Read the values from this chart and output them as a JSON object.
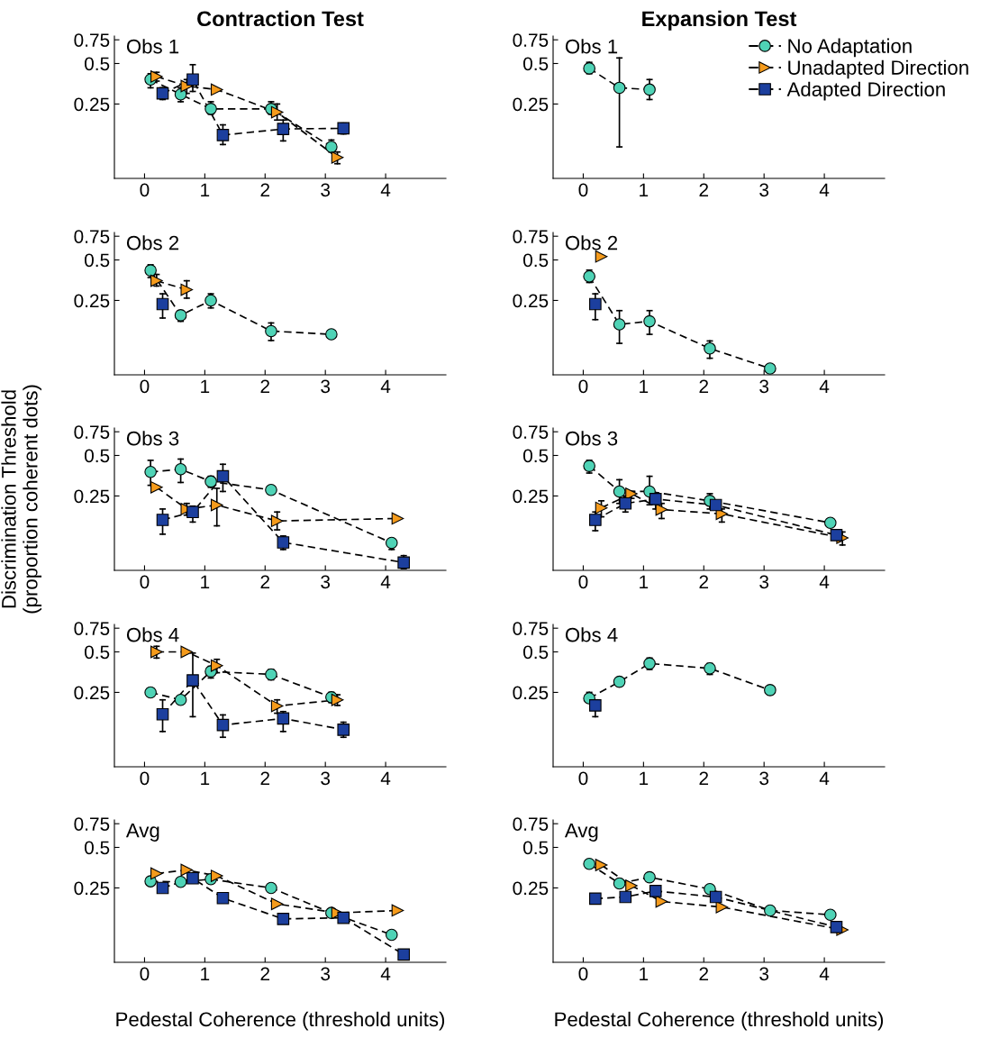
{
  "chart_data": [
    {
      "type": "line",
      "title": "Contraction Test",
      "annotations": [
        "Obs 1"
      ],
      "xlim": [
        -0.5,
        5
      ],
      "ylim": [
        0.07,
        0.8
      ],
      "xticks": [
        0,
        1,
        2,
        3,
        4
      ],
      "yticks": [
        0.25,
        0.5,
        0.75
      ],
      "log": true,
      "line_style": "dashed",
      "grid": false,
      "legend": "right",
      "series": [
        {
          "name": "No Adaptation",
          "color": "#4fd3b6",
          "marker": "circle",
          "x": [
            0.1,
            0.6,
            1.1,
            2.1,
            3.1
          ],
          "values": [
            0.38,
            0.295,
            0.23,
            0.23,
            0.12
          ],
          "errors": [
            [
              0.33,
              0.42
            ],
            [
              0.26,
              0.33
            ],
            [
              0.21,
              0.26
            ],
            [
              0.21,
              0.26
            ],
            [
              0.11,
              0.135
            ]
          ]
        },
        {
          "name": "Unadapted Direction",
          "color": "#f59b1c",
          "marker": "triangle",
          "x": [
            0.2,
            0.7,
            1.2,
            2.2,
            3.2
          ],
          "values": [
            0.4,
            0.34,
            0.32,
            0.217,
            0.1
          ],
          "errors": [
            [
              0.37,
              0.43
            ],
            [
              0.3,
              0.38
            ],
            null,
            [
              0.19,
              0.25
            ],
            [
              0.09,
              0.11
            ]
          ]
        },
        {
          "name": "Adapted Direction",
          "color": "#1c3f9e",
          "marker": "square",
          "x": [
            0.3,
            0.8,
            1.3,
            2.3,
            3.3
          ],
          "values": [
            0.3,
            0.38,
            0.147,
            0.163,
            0.165
          ],
          "errors": [
            [
              0.27,
              0.33
            ],
            [
              0.31,
              0.49
            ],
            [
              0.125,
              0.175
            ],
            [
              0.133,
              0.19
            ],
            [
              0.15,
              0.18
            ]
          ]
        }
      ]
    },
    {
      "type": "line",
      "title": "Expansion Test",
      "annotations": [
        "Obs 1"
      ],
      "xlim": [
        -0.5,
        5
      ],
      "ylim": [
        0.07,
        0.8
      ],
      "xticks": [
        0,
        1,
        2,
        3,
        4
      ],
      "yticks": [
        0.25,
        0.5,
        0.75
      ],
      "log": true,
      "line_style": "dashed",
      "grid": false,
      "series": [
        {
          "color": "#4fd3b6",
          "marker": "circle",
          "x": [
            0.1,
            0.6,
            1.1
          ],
          "values": [
            0.46,
            0.33,
            0.32
          ],
          "errors": [
            [
              0.42,
              0.51
            ],
            [
              0.12,
              0.55
            ],
            [
              0.27,
              0.38
            ]
          ]
        }
      ]
    },
    {
      "type": "line",
      "annotations": [
        "Obs 2"
      ],
      "xlim": [
        -0.5,
        5
      ],
      "ylim": [
        0.07,
        0.8
      ],
      "xticks": [
        0,
        1,
        2,
        3,
        4
      ],
      "yticks": [
        0.25,
        0.5,
        0.75
      ],
      "log": true,
      "line_style": "dashed",
      "grid": false,
      "series": [
        {
          "color": "#4fd3b6",
          "marker": "circle",
          "x": [
            0.1,
            0.6,
            1.1,
            2.1,
            3.1
          ],
          "values": [
            0.418,
            0.194,
            0.25,
            0.148,
            0.14
          ],
          "errors": [
            [
              0.37,
              0.46
            ],
            [
              0.175,
              0.21
            ],
            [
              0.22,
              0.28
            ],
            [
              0.126,
              0.17
            ],
            null
          ]
        },
        {
          "color": "#f59b1c",
          "marker": "triangle",
          "x": [
            0.2,
            0.7
          ],
          "values": [
            0.35,
            0.3
          ],
          "errors": [
            [
              0.32,
              0.39
            ],
            [
              0.26,
              0.35
            ]
          ]
        },
        {
          "color": "#1c3f9e",
          "marker": "square",
          "x": [
            0.3
          ],
          "values": [
            0.235
          ],
          "errors": [
            [
              0.185,
              0.28
            ]
          ]
        }
      ]
    },
    {
      "type": "line",
      "annotations": [
        "Obs 2"
      ],
      "xlim": [
        -0.5,
        5
      ],
      "ylim": [
        0.07,
        0.8
      ],
      "xticks": [
        0,
        1,
        2,
        3,
        4
      ],
      "yticks": [
        0.25,
        0.5,
        0.75
      ],
      "log": true,
      "line_style": "dashed",
      "grid": false,
      "series": [
        {
          "color": "#4fd3b6",
          "marker": "circle",
          "x": [
            0.1,
            0.6,
            1.1,
            2.1,
            3.1
          ],
          "values": [
            0.377,
            0.166,
            0.175,
            0.11,
            0.078
          ],
          "errors": [
            [
              0.34,
              0.42
            ],
            [
              0.12,
              0.21
            ],
            [
              0.14,
              0.21
            ],
            [
              0.093,
              0.125
            ],
            null
          ]
        },
        {
          "color": "#f59b1c",
          "marker": "triangle",
          "x": [
            0.3
          ],
          "values": [
            0.53
          ],
          "errors": [
            null
          ]
        },
        {
          "color": "#1c3f9e",
          "marker": "square",
          "x": [
            0.2
          ],
          "values": [
            0.235
          ],
          "errors": [
            [
              0.18,
              0.28
            ]
          ]
        }
      ]
    },
    {
      "type": "line",
      "annotations": [
        "Obs 3"
      ],
      "ylabel": "Discrimination Threshold\n(proportion coherent dots)",
      "xlim": [
        -0.5,
        5
      ],
      "ylim": [
        0.07,
        0.8
      ],
      "xticks": [
        0,
        1,
        2,
        3,
        4
      ],
      "yticks": [
        0.25,
        0.5,
        0.75
      ],
      "log": true,
      "line_style": "dashed",
      "grid": false,
      "series": [
        {
          "color": "#4fd3b6",
          "marker": "circle",
          "x": [
            0.1,
            0.6,
            1.1,
            2.1,
            4.1
          ],
          "values": [
            0.377,
            0.395,
            0.32,
            0.277,
            0.112
          ],
          "errors": [
            [
              0.3,
              0.46
            ],
            [
              0.315,
              0.47
            ],
            [
              0.29,
              0.35
            ],
            [
              0.26,
              0.29
            ],
            [
              0.1,
              0.12
            ]
          ]
        },
        {
          "color": "#f59b1c",
          "marker": "triangle",
          "x": [
            0.2,
            0.7,
            1.2,
            2.2,
            4.2
          ],
          "values": [
            0.29,
            0.2,
            0.214,
            0.163,
            0.17
          ],
          "errors": [
            null,
            [
              0.18,
              0.22
            ],
            [
              0.15,
              0.285
            ],
            [
              0.14,
              0.19
            ],
            null
          ]
        },
        {
          "color": "#1c3f9e",
          "marker": "square",
          "x": [
            0.3,
            0.8,
            1.3,
            2.3,
            4.3
          ],
          "values": [
            0.166,
            0.19,
            0.35,
            0.113,
            0.08
          ],
          "errors": [
            [
              0.13,
              0.2
            ],
            [
              0.16,
              0.21
            ],
            [
              0.27,
              0.43
            ],
            [
              0.1,
              0.126
            ],
            [
              0.072,
              0.09
            ]
          ]
        }
      ]
    },
    {
      "type": "line",
      "annotations": [
        "Obs 3"
      ],
      "xlim": [
        -0.5,
        5
      ],
      "ylim": [
        0.07,
        0.8
      ],
      "xticks": [
        0,
        1,
        2,
        3,
        4
      ],
      "yticks": [
        0.25,
        0.5,
        0.75
      ],
      "log": true,
      "line_style": "dashed",
      "grid": false,
      "series": [
        {
          "color": "#4fd3b6",
          "marker": "circle",
          "x": [
            0.1,
            0.6,
            1.1,
            2.1,
            4.1
          ],
          "values": [
            0.418,
            0.27,
            0.27,
            0.23,
            0.158
          ],
          "errors": [
            [
              0.37,
              0.46
            ],
            [
              0.22,
              0.33
            ],
            [
              0.215,
              0.35
            ],
            [
              0.2,
              0.26
            ],
            null
          ]
        },
        {
          "color": "#f59b1c",
          "marker": "triangle",
          "x": [
            0.3,
            0.8,
            1.3,
            2.3,
            4.3
          ],
          "values": [
            0.204,
            0.26,
            0.198,
            0.184,
            0.122
          ],
          "errors": [
            [
              0.175,
              0.23
            ],
            [
              0.24,
              0.27
            ],
            [
              0.17,
              0.22
            ],
            [
              0.16,
              0.2
            ],
            [
              0.108,
              0.135
            ]
          ]
        },
        {
          "color": "#1c3f9e",
          "marker": "square",
          "x": [
            0.2,
            0.7,
            1.2,
            2.2,
            4.2
          ],
          "values": [
            0.166,
            0.22,
            0.237,
            0.214,
            0.128
          ],
          "errors": [
            [
              0.138,
              0.19
            ],
            [
              0.19,
              0.25
            ],
            [
              0.2,
              0.26
            ],
            [
              0.2,
              0.23
            ],
            [
              0.12,
              0.14
            ]
          ]
        }
      ]
    },
    {
      "type": "line",
      "annotations": [
        "Obs 4"
      ],
      "xlim": [
        -0.5,
        5
      ],
      "ylim": [
        0.07,
        0.8
      ],
      "xticks": [
        0,
        1,
        2,
        3,
        4
      ],
      "yticks": [
        0.25,
        0.5,
        0.75
      ],
      "log": true,
      "line_style": "dashed",
      "grid": false,
      "series": [
        {
          "color": "#4fd3b6",
          "marker": "circle",
          "x": [
            0.1,
            0.6,
            1.1,
            2.1,
            3.1
          ],
          "values": [
            0.25,
            0.22,
            0.358,
            0.34,
            0.23
          ],
          "errors": [
            null,
            null,
            [
              0.32,
              0.39
            ],
            [
              0.31,
              0.37
            ],
            [
              0.21,
              0.25
            ]
          ]
        },
        {
          "color": "#f59b1c",
          "marker": "triangle",
          "x": [
            0.2,
            0.7,
            1.2,
            2.2,
            3.2
          ],
          "values": [
            0.5,
            0.5,
            0.395,
            0.198,
            0.22
          ],
          "errors": [
            [
              0.45,
              0.55
            ],
            null,
            [
              0.35,
              0.44
            ],
            [
              0.175,
              0.22
            ],
            [
              0.2,
              0.24
            ]
          ]
        },
        {
          "color": "#1c3f9e",
          "marker": "square",
          "x": [
            0.3,
            0.8,
            1.3,
            2.3,
            3.3
          ],
          "values": [
            0.172,
            0.307,
            0.143,
            0.16,
            0.132
          ],
          "errors": [
            [
              0.128,
              0.22
            ],
            [
              0.165,
              0.49
            ],
            [
              0.116,
              0.17
            ],
            [
              0.128,
              0.18
            ],
            [
              0.116,
              0.15
            ]
          ]
        }
      ]
    },
    {
      "type": "line",
      "annotations": [
        "Obs 4"
      ],
      "xlim": [
        -0.5,
        5
      ],
      "ylim": [
        0.07,
        0.8
      ],
      "xticks": [
        0,
        1,
        2,
        3,
        4
      ],
      "yticks": [
        0.25,
        0.5,
        0.75
      ],
      "log": true,
      "line_style": "dashed",
      "grid": false,
      "series": [
        {
          "color": "#4fd3b6",
          "marker": "circle",
          "x": [
            0.1,
            0.6,
            1.1,
            2.1,
            3.1
          ],
          "values": [
            0.226,
            0.3,
            0.41,
            0.377,
            0.26
          ],
          "errors": [
            [
              0.21,
              0.25
            ],
            null,
            [
              0.37,
              0.45
            ],
            [
              0.34,
              0.41
            ],
            [
              0.24,
              0.28
            ]
          ]
        },
        {
          "color": "#1c3f9e",
          "marker": "square",
          "x": [
            0.2
          ],
          "values": [
            0.2
          ],
          "errors": [
            [
              0.165,
              0.22
            ]
          ]
        }
      ]
    },
    {
      "type": "line",
      "annotations": [
        "Avg"
      ],
      "xlabel": "Pedestal Coherence (threshold units)",
      "xlim": [
        -0.5,
        5
      ],
      "ylim": [
        0.07,
        0.8
      ],
      "xticks": [
        0,
        1,
        2,
        3,
        4
      ],
      "yticks": [
        0.25,
        0.5,
        0.75
      ],
      "log": true,
      "line_style": "dashed",
      "grid": false,
      "series": [
        {
          "color": "#4fd3b6",
          "marker": "circle",
          "x": [
            0.1,
            0.6,
            1.1,
            2.1,
            3.1,
            4.1
          ],
          "values": [
            0.28,
            0.277,
            0.29,
            0.25,
            0.163,
            0.112
          ]
        },
        {
          "color": "#f59b1c",
          "marker": "triangle",
          "x": [
            0.2,
            0.7,
            1.2,
            2.2,
            3.2,
            4.2
          ],
          "values": [
            0.32,
            0.34,
            0.307,
            0.19,
            0.163,
            0.17
          ]
        },
        {
          "color": "#1c3f9e",
          "marker": "square",
          "x": [
            0.3,
            0.8,
            1.3,
            2.3,
            3.3,
            4.3
          ],
          "values": [
            0.25,
            0.295,
            0.21,
            0.147,
            0.15,
            0.08
          ]
        }
      ]
    },
    {
      "type": "line",
      "annotations": [
        "Avg"
      ],
      "xlabel": "Pedestal Coherence (threshold units)",
      "xlim": [
        -0.5,
        5
      ],
      "ylim": [
        0.07,
        0.8
      ],
      "xticks": [
        0,
        1,
        2,
        3,
        4
      ],
      "yticks": [
        0.25,
        0.5,
        0.75
      ],
      "log": true,
      "line_style": "dashed",
      "grid": false,
      "series": [
        {
          "color": "#4fd3b6",
          "marker": "circle",
          "x": [
            0.1,
            0.6,
            1.1,
            2.1,
            3.1,
            4.1
          ],
          "values": [
            0.377,
            0.27,
            0.3,
            0.245,
            0.17,
            0.158
          ]
        },
        {
          "color": "#f59b1c",
          "marker": "triangle",
          "x": [
            0.3,
            0.8,
            1.3,
            2.3,
            4.3
          ],
          "values": [
            0.37,
            0.26,
            0.198,
            0.18,
            0.122
          ]
        },
        {
          "color": "#1c3f9e",
          "marker": "square",
          "x": [
            0.2,
            0.7,
            1.2,
            2.2,
            4.2
          ],
          "values": [
            0.208,
            0.214,
            0.237,
            0.214,
            0.128
          ]
        }
      ]
    }
  ]
}
